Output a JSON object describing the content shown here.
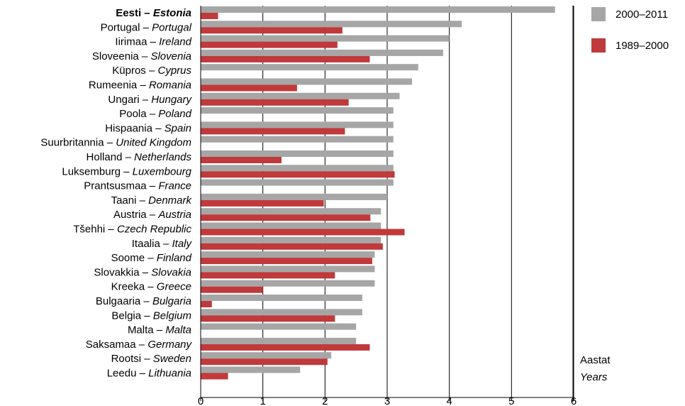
{
  "chart_data": {
    "type": "bar",
    "orientation": "horizontal",
    "categories": [
      {
        "et": "Eesti",
        "en": "Estonia",
        "highlight": true
      },
      {
        "et": "Portugal",
        "en": "Portugal"
      },
      {
        "et": "Iirimaa",
        "en": "Ireland"
      },
      {
        "et": "Sloveenia",
        "en": "Slovenia"
      },
      {
        "et": "Küpros",
        "en": "Cyprus"
      },
      {
        "et": "Rumeenia",
        "en": "Romania"
      },
      {
        "et": "Ungari",
        "en": "Hungary"
      },
      {
        "et": "Poola",
        "en": "Poland"
      },
      {
        "et": "Hispaania",
        "en": "Spain"
      },
      {
        "et": "Suurbritannia",
        "en": "United Kingdom"
      },
      {
        "et": "Holland",
        "en": "Netherlands"
      },
      {
        "et": "Luksemburg",
        "en": "Luxembourg"
      },
      {
        "et": "Prantsusmaa",
        "en": "France"
      },
      {
        "et": "Taani",
        "en": "Denmark"
      },
      {
        "et": "Austria",
        "en": "Austria"
      },
      {
        "et": "Tšehhi",
        "en": "Czech Republic"
      },
      {
        "et": "Itaalia",
        "en": "Italy"
      },
      {
        "et": "Soome",
        "en": "Finland"
      },
      {
        "et": "Slovakkia",
        "en": "Slovakia"
      },
      {
        "et": "Kreeka",
        "en": "Greece"
      },
      {
        "et": "Bulgaaria",
        "en": "Bulgaria"
      },
      {
        "et": "Belgia",
        "en": "Belgium"
      },
      {
        "et": "Malta",
        "en": "Malta"
      },
      {
        "et": "Saksamaa",
        "en": "Germany"
      },
      {
        "et": "Rootsi",
        "en": "Sweden"
      },
      {
        "et": "Leedu",
        "en": "Lithuania"
      }
    ],
    "series": [
      {
        "name": "2000–2011",
        "color": "#a6a6a6",
        "values": [
          5.7,
          4.2,
          4.0,
          3.9,
          3.5,
          3.4,
          3.2,
          3.1,
          3.1,
          3.1,
          3.1,
          3.1,
          3.1,
          3.0,
          2.9,
          2.9,
          2.9,
          2.8,
          2.8,
          2.8,
          2.6,
          2.6,
          2.5,
          2.5,
          2.1,
          1.6
        ]
      },
      {
        "name": "1989–2000",
        "color": "#c0393b",
        "values": [
          0.28,
          2.28,
          2.2,
          2.72,
          null,
          1.55,
          2.38,
          null,
          2.32,
          null,
          1.3,
          3.12,
          null,
          1.98,
          2.73,
          3.28,
          2.93,
          2.76,
          2.16,
          1.0,
          0.18,
          2.16,
          null,
          2.72,
          2.04,
          0.44
        ]
      }
    ],
    "xlim": [
      0,
      6
    ],
    "xticks": [
      "0",
      "1",
      "2",
      "3",
      "4",
      "5",
      "6"
    ],
    "xlabel_et": "Aastat",
    "xlabel_en": "Years",
    "separator": " – ",
    "grid": "vertical",
    "legend_position": "top-right"
  }
}
